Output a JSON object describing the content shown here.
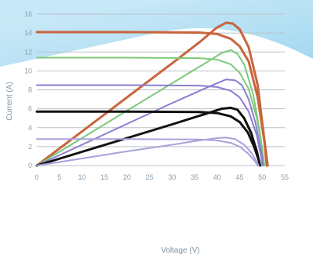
{
  "chart_data": {
    "type": "line",
    "title": "",
    "xlabel": "Voltage (V)",
    "ylabel": "Current (A)",
    "xlim": [
      0,
      55
    ],
    "ylim": [
      0,
      16
    ],
    "xticks": [
      0,
      5,
      10,
      15,
      20,
      25,
      30,
      35,
      40,
      45,
      50,
      55
    ],
    "yticks": [
      0,
      2,
      4,
      6,
      8,
      10,
      12,
      14,
      16
    ],
    "grid": "horizontal",
    "legend": "none",
    "series": [
      {
        "color": "#c8653e",
        "points": [
          [
            0,
            0
          ],
          [
            10,
            3.6
          ],
          [
            20,
            7.2
          ],
          [
            30,
            10.8
          ],
          [
            36,
            13.0
          ],
          [
            40,
            14.6
          ],
          [
            42,
            15.1
          ],
          [
            43.5,
            15.0
          ],
          [
            45,
            14.4
          ],
          [
            47,
            12.5
          ],
          [
            49,
            8.5
          ],
          [
            50,
            4.5
          ],
          [
            50.8,
            1.5
          ],
          [
            51.2,
            0
          ]
        ]
      },
      {
        "color": "#c8653e",
        "points": [
          [
            0,
            14.1
          ],
          [
            20,
            14.1
          ],
          [
            36,
            14.05
          ],
          [
            40,
            13.9
          ],
          [
            43,
            13.4
          ],
          [
            45,
            12.6
          ],
          [
            47,
            11.0
          ],
          [
            49,
            7.2
          ],
          [
            50.5,
            2.5
          ],
          [
            51,
            0
          ]
        ]
      },
      {
        "color": "#7fc97a",
        "points": [
          [
            0,
            0
          ],
          [
            10,
            2.9
          ],
          [
            20,
            5.8
          ],
          [
            30,
            8.7
          ],
          [
            38,
            11.0
          ],
          [
            41,
            11.9
          ],
          [
            43,
            12.2
          ],
          [
            44.5,
            11.8
          ],
          [
            46,
            10.7
          ],
          [
            48,
            7.5
          ],
          [
            49.5,
            3.5
          ],
          [
            50.5,
            0
          ]
        ]
      },
      {
        "color": "#7fc97a",
        "points": [
          [
            0,
            11.4
          ],
          [
            20,
            11.4
          ],
          [
            36,
            11.35
          ],
          [
            40,
            11.2
          ],
          [
            43,
            10.7
          ],
          [
            45,
            9.8
          ],
          [
            47,
            8.1
          ],
          [
            48.8,
            5.0
          ],
          [
            50,
            1.8
          ],
          [
            50.4,
            0
          ]
        ]
      },
      {
        "color": "#8a7fd0",
        "points": [
          [
            0,
            0
          ],
          [
            10,
            2.2
          ],
          [
            20,
            4.4
          ],
          [
            30,
            6.6
          ],
          [
            38,
            8.3
          ],
          [
            42,
            9.1
          ],
          [
            44,
            9.0
          ],
          [
            45.5,
            8.5
          ],
          [
            47,
            7.0
          ],
          [
            48.5,
            4.5
          ],
          [
            49.8,
            1.5
          ],
          [
            50.2,
            0
          ]
        ]
      },
      {
        "color": "#8a7fd0",
        "points": [
          [
            0,
            8.5
          ],
          [
            20,
            8.5
          ],
          [
            36,
            8.45
          ],
          [
            40,
            8.3
          ],
          [
            43,
            7.9
          ],
          [
            45,
            7.2
          ],
          [
            47,
            5.7
          ],
          [
            48.8,
            3.2
          ],
          [
            49.8,
            0.8
          ],
          [
            50,
            0
          ]
        ]
      },
      {
        "color": "#111111",
        "points": [
          [
            0,
            0
          ],
          [
            10,
            1.45
          ],
          [
            20,
            2.9
          ],
          [
            30,
            4.35
          ],
          [
            37,
            5.4
          ],
          [
            41,
            6.0
          ],
          [
            43,
            6.1
          ],
          [
            44.5,
            5.9
          ],
          [
            46,
            5.0
          ],
          [
            47.5,
            3.5
          ],
          [
            48.8,
            1.5
          ],
          [
            49.5,
            0
          ]
        ]
      },
      {
        "color": "#111111",
        "points": [
          [
            0,
            5.7
          ],
          [
            20,
            5.7
          ],
          [
            36,
            5.65
          ],
          [
            40,
            5.55
          ],
          [
            43,
            5.2
          ],
          [
            45,
            4.6
          ],
          [
            46.8,
            3.5
          ],
          [
            48.2,
            2.0
          ],
          [
            49.2,
            0.6
          ],
          [
            49.5,
            0
          ]
        ]
      },
      {
        "color": "#a8a3dc",
        "points": [
          [
            0,
            0
          ],
          [
            10,
            0.75
          ],
          [
            20,
            1.5
          ],
          [
            30,
            2.2
          ],
          [
            36,
            2.65
          ],
          [
            40,
            2.9
          ],
          [
            42,
            2.95
          ],
          [
            44,
            2.8
          ],
          [
            46,
            2.2
          ],
          [
            47.5,
            1.4
          ],
          [
            48.8,
            0.4
          ],
          [
            49.2,
            0
          ]
        ]
      },
      {
        "color": "#a8a3dc",
        "points": [
          [
            0,
            2.8
          ],
          [
            20,
            2.8
          ],
          [
            36,
            2.75
          ],
          [
            40,
            2.65
          ],
          [
            43,
            2.4
          ],
          [
            45,
            2.0
          ],
          [
            46.8,
            1.3
          ],
          [
            48.3,
            0.5
          ],
          [
            49,
            0
          ]
        ]
      }
    ]
  },
  "decor": {
    "banner_light": "#c7e8f7",
    "banner_mid": "#a9dbf2",
    "banner_dark": "#8fcfee"
  }
}
